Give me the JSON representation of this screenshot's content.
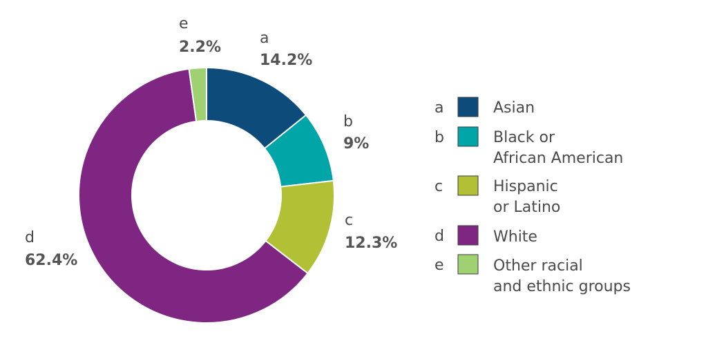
{
  "chart_data": {
    "type": "pie",
    "donut": true,
    "categories": [
      "a",
      "b",
      "c",
      "d",
      "e"
    ],
    "values": [
      14.2,
      9,
      12.3,
      62.4,
      2.2
    ],
    "value_labels": [
      "14.2%",
      "9%",
      "12.3%",
      "62.4%",
      "2.2%"
    ],
    "legend": [
      {
        "letter": "a",
        "label": "Asian",
        "color": "#0d4c7a"
      },
      {
        "letter": "b",
        "label": "Black or African American",
        "color": "#00a5a8"
      },
      {
        "letter": "c",
        "label": "Hispanic or Latino",
        "color": "#b2c036"
      },
      {
        "letter": "d",
        "label": "White",
        "color": "#7e2682"
      },
      {
        "letter": "e",
        "label": "Other racial and ethnic groups",
        "color": "#9fd173"
      }
    ],
    "legend_placement": "right"
  }
}
